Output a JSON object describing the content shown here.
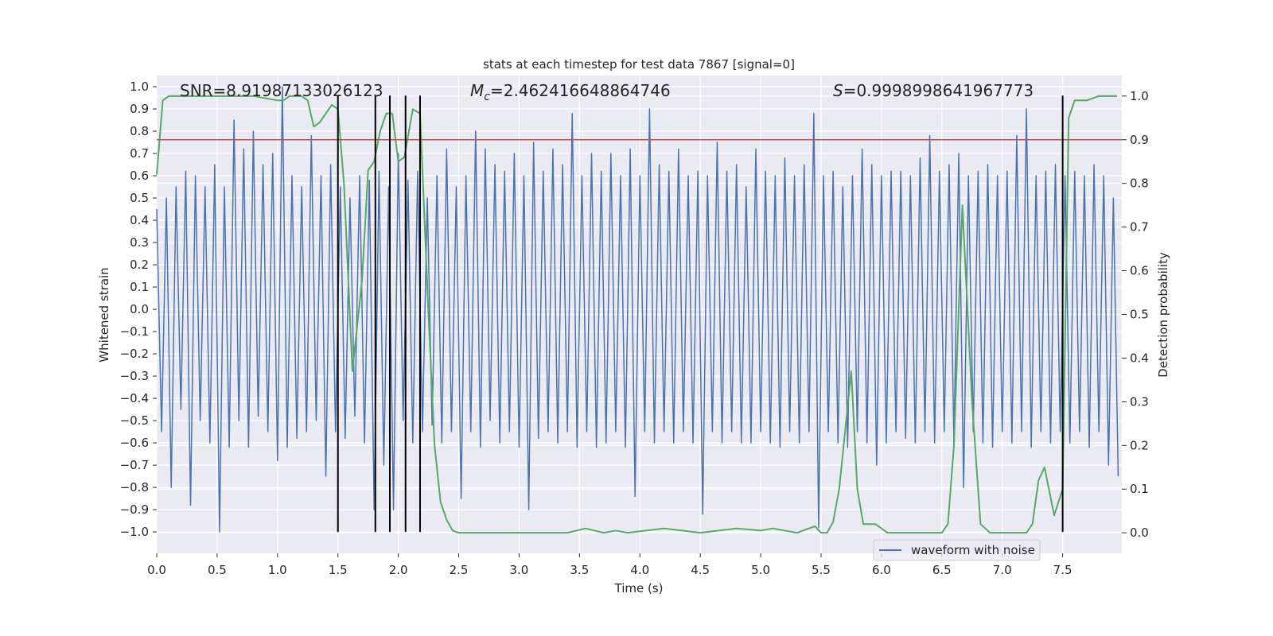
{
  "chart_data": {
    "type": "line",
    "title": "stats at each timestep for test data 7867 [signal=0]",
    "xlabel": "Time (s)",
    "ylabel": "Whitened strain",
    "y2label": "Detection probability",
    "grid": true,
    "legend_loc": "lower right",
    "xlim": [
      0,
      7.99
    ],
    "xticks": [
      {
        "value": 0,
        "label": "0.0"
      },
      {
        "value": 0.5,
        "label": "0.5"
      },
      {
        "value": 1,
        "label": "1.0"
      },
      {
        "value": 1.5,
        "label": "1.5"
      },
      {
        "value": 2,
        "label": "2.0"
      },
      {
        "value": 2.5,
        "label": "2.5"
      },
      {
        "value": 3,
        "label": "3.0"
      },
      {
        "value": 3.5,
        "label": "3.5"
      },
      {
        "value": 4,
        "label": "4.0"
      },
      {
        "value": 4.5,
        "label": "4.5"
      },
      {
        "value": 5,
        "label": "5.0"
      },
      {
        "value": 5.5,
        "label": "5.5"
      },
      {
        "value": 6,
        "label": "6.0"
      },
      {
        "value": 6.5,
        "label": "6.5"
      },
      {
        "value": 7,
        "label": "7.0"
      },
      {
        "value": 7.5,
        "label": "7.5"
      }
    ],
    "ylim": [
      -1.096,
      1.05
    ],
    "yticks": [
      {
        "value": -1,
        "label": "−1.0"
      },
      {
        "value": -0.9,
        "label": "−0.9"
      },
      {
        "value": -0.8,
        "label": "−0.8"
      },
      {
        "value": -0.7,
        "label": "−0.7"
      },
      {
        "value": -0.6,
        "label": "−0.6"
      },
      {
        "value": -0.5,
        "label": "−0.5"
      },
      {
        "value": -0.4,
        "label": "−0.4"
      },
      {
        "value": -0.3,
        "label": "−0.3"
      },
      {
        "value": -0.2,
        "label": "−0.2"
      },
      {
        "value": -0.1,
        "label": "−0.1"
      },
      {
        "value": 0,
        "label": "0.0"
      },
      0.1,
      0.2,
      0.3,
      0.4,
      0.5,
      0.6,
      0.7,
      0.8,
      0.9,
      {
        "value": 1,
        "label": "1.0"
      }
    ],
    "y2lim": [
      -0.047,
      1.047
    ],
    "y2ticks": [
      {
        "value": 0,
        "label": "0.0"
      },
      0.1,
      0.2,
      0.3,
      0.4,
      0.5,
      0.6,
      0.7,
      0.8,
      0.9,
      {
        "value": 1,
        "label": "1.0"
      }
    ],
    "series": [
      {
        "name": "waveform with noise",
        "color": "#4c72b0",
        "x": [
          0,
          0.04,
          0.08,
          0.12,
          0.16,
          0.2,
          0.24,
          0.28,
          0.32,
          0.36,
          0.4,
          0.44,
          0.48,
          0.52,
          0.56,
          0.6,
          0.64,
          0.68,
          0.72,
          0.76,
          0.8,
          0.84,
          0.88,
          0.92,
          0.96,
          1,
          1.04,
          1.08,
          1.12,
          1.16,
          1.2,
          1.24,
          1.28,
          1.32,
          1.36,
          1.4,
          1.44,
          1.48,
          1.52,
          1.56,
          1.6,
          1.64,
          1.68,
          1.72,
          1.76,
          1.8,
          1.84,
          1.88,
          1.92,
          1.96,
          2,
          2.04,
          2.08,
          2.12,
          2.16,
          2.2,
          2.24,
          2.28,
          2.32,
          2.36,
          2.4,
          2.44,
          2.48,
          2.52,
          2.56,
          2.6,
          2.64,
          2.68,
          2.72,
          2.76,
          2.8,
          2.84,
          2.88,
          2.92,
          2.96,
          3,
          3.04,
          3.08,
          3.12,
          3.16,
          3.2,
          3.24,
          3.28,
          3.32,
          3.36,
          3.4,
          3.44,
          3.48,
          3.52,
          3.56,
          3.6,
          3.64,
          3.68,
          3.72,
          3.76,
          3.8,
          3.84,
          3.88,
          3.92,
          3.96,
          4,
          4.04,
          4.08,
          4.12,
          4.16,
          4.2,
          4.24,
          4.28,
          4.32,
          4.36,
          4.4,
          4.44,
          4.48,
          4.52,
          4.56,
          4.6,
          4.64,
          4.68,
          4.72,
          4.76,
          4.8,
          4.84,
          4.88,
          4.92,
          4.96,
          5,
          5.04,
          5.08,
          5.12,
          5.16,
          5.2,
          5.24,
          5.28,
          5.32,
          5.36,
          5.4,
          5.44,
          5.48,
          5.52,
          5.56,
          5.6,
          5.64,
          5.68,
          5.72,
          5.76,
          5.8,
          5.84,
          5.88,
          5.92,
          5.96,
          6,
          6.04,
          6.08,
          6.12,
          6.16,
          6.2,
          6.24,
          6.28,
          6.32,
          6.36,
          6.4,
          6.44,
          6.48,
          6.52,
          6.56,
          6.6,
          6.64,
          6.68,
          6.72,
          6.76,
          6.8,
          6.84,
          6.88,
          6.92,
          6.96,
          7,
          7.04,
          7.08,
          7.12,
          7.16,
          7.2,
          7.24,
          7.28,
          7.32,
          7.36,
          7.4,
          7.44,
          7.48,
          7.52,
          7.56,
          7.6,
          7.64,
          7.68,
          7.72,
          7.76,
          7.8,
          7.84,
          7.88,
          7.92,
          7.96
        ],
        "values": [
          0.45,
          -0.55,
          0.5,
          -0.8,
          0.55,
          -0.45,
          0.62,
          -0.88,
          0.6,
          -0.5,
          0.55,
          -0.6,
          0.65,
          -1.0,
          0.55,
          -0.62,
          0.85,
          -0.5,
          0.72,
          -0.62,
          0.8,
          -0.48,
          0.65,
          -0.55,
          0.7,
          -0.68,
          1.0,
          -0.62,
          0.6,
          -0.58,
          0.55,
          -0.55,
          0.78,
          -0.5,
          0.6,
          -0.75,
          0.65,
          -0.55,
          0.55,
          -0.58,
          0.5,
          -0.48,
          0.6,
          -0.6,
          0.58,
          -0.9,
          0.62,
          -0.7,
          0.55,
          -0.9,
          0.7,
          -0.5,
          0.58,
          -0.6,
          0.62,
          -0.55,
          0.5,
          -0.52,
          0.6,
          -0.6,
          0.72,
          -0.55,
          0.55,
          -0.85,
          0.6,
          -0.55,
          0.8,
          -0.62,
          0.72,
          -0.5,
          0.65,
          -0.6,
          0.62,
          -0.55,
          0.7,
          -0.62,
          0.6,
          -0.9,
          0.75,
          -0.58,
          0.62,
          -0.55,
          0.72,
          -0.6,
          0.65,
          -0.55,
          0.88,
          -0.62,
          0.6,
          -0.55,
          0.7,
          -0.62,
          0.62,
          -0.6,
          0.7,
          -0.55,
          0.6,
          -0.62,
          0.72,
          -0.84,
          0.6,
          -0.55,
          0.9,
          -0.6,
          0.65,
          -0.55,
          0.62,
          -0.6,
          0.72,
          -0.55,
          0.6,
          -0.6,
          0.62,
          -0.92,
          0.6,
          -0.55,
          0.75,
          -0.6,
          0.62,
          -0.55,
          0.65,
          -0.6,
          0.55,
          -0.6,
          0.72,
          -0.55,
          0.62,
          -0.6,
          0.6,
          -0.62,
          0.68,
          -0.55,
          0.6,
          -0.6,
          0.65,
          -0.55,
          0.88,
          -0.98,
          0.6,
          -0.55,
          0.62,
          -0.6,
          0.55,
          -0.62,
          0.6,
          -0.55,
          0.72,
          -0.6,
          0.65,
          -0.7,
          0.6,
          -0.6,
          0.62,
          -0.55,
          0.62,
          -0.58,
          0.6,
          -0.6,
          0.68,
          -0.55,
          0.78,
          -0.6,
          0.62,
          -0.55,
          0.65,
          -0.6,
          0.7,
          -0.8,
          0.6,
          -0.55,
          0.62,
          -0.6,
          0.65,
          -0.62,
          0.6,
          -0.55,
          0.62,
          -0.6,
          0.78,
          -0.55,
          0.9,
          -0.62,
          0.6,
          -0.55,
          0.62,
          -0.6,
          0.65,
          -0.55,
          0.6,
          -0.6,
          0.62,
          -0.55,
          0.6,
          -0.62,
          0.65,
          -0.55,
          0.6,
          -0.7,
          0.5,
          -0.75
        ]
      },
      {
        "color": "#55a868",
        "axis": "y2",
        "x": [
          0,
          0.05,
          0.1,
          0.2,
          0.4,
          0.6,
          0.8,
          1.0,
          1.05,
          1.1,
          1.2,
          1.25,
          1.3,
          1.35,
          1.45,
          1.5,
          1.55,
          1.62,
          1.7,
          1.75,
          1.8,
          1.85,
          1.9,
          1.95,
          2.0,
          2.05,
          2.12,
          2.18,
          2.25,
          2.3,
          2.35,
          2.4,
          2.45,
          2.5,
          3.0,
          3.4,
          3.55,
          3.7,
          3.8,
          3.9,
          4.2,
          4.5,
          4.8,
          5.0,
          5.1,
          5.3,
          5.45,
          5.5,
          5.55,
          5.6,
          5.65,
          5.75,
          5.8,
          5.85,
          5.95,
          6.05,
          6.5,
          6.55,
          6.6,
          6.67,
          6.75,
          6.82,
          6.9,
          7.2,
          7.25,
          7.3,
          7.35,
          7.43,
          7.5,
          7.55,
          7.6,
          7.7,
          7.8,
          7.95
        ],
        "values": [
          0.82,
          0.99,
          1.0,
          1.0,
          1.0,
          1.0,
          1.0,
          0.99,
          0.99,
          1.0,
          1.0,
          0.99,
          0.93,
          0.94,
          0.98,
          0.97,
          0.8,
          0.37,
          0.58,
          0.83,
          0.85,
          0.92,
          0.96,
          0.96,
          0.85,
          0.86,
          0.97,
          0.96,
          0.5,
          0.2,
          0.07,
          0.03,
          0.005,
          0.0,
          0.0,
          0.0,
          0.01,
          0.0,
          0.005,
          0.0,
          0.01,
          0.0,
          0.01,
          0.005,
          0.01,
          0.0,
          0.015,
          0.0,
          0.0,
          0.025,
          0.1,
          0.37,
          0.1,
          0.02,
          0.02,
          0.0,
          0.0,
          0.02,
          0.2,
          0.75,
          0.3,
          0.02,
          0.0,
          0.0,
          0.02,
          0.12,
          0.15,
          0.04,
          0.1,
          0.95,
          0.99,
          0.99,
          1.0,
          1.0
        ]
      }
    ],
    "hlines": [
      {
        "value": 0.9,
        "axis": "y2",
        "color": "#c44e52"
      }
    ],
    "vlines": {
      "x": [
        1.5,
        1.81,
        1.93,
        2.06,
        2.18,
        7.5
      ],
      "ylim": [
        -1.0,
        0.96
      ],
      "color": "#000000"
    },
    "annotations": [
      {
        "text": "SNR=8.91987133026123"
      },
      {
        "symbol": "M",
        "subscript": "c",
        "text": "=2.462416648864746"
      },
      {
        "symbol": "S",
        "text": "=0.9998998641967773"
      }
    ]
  }
}
